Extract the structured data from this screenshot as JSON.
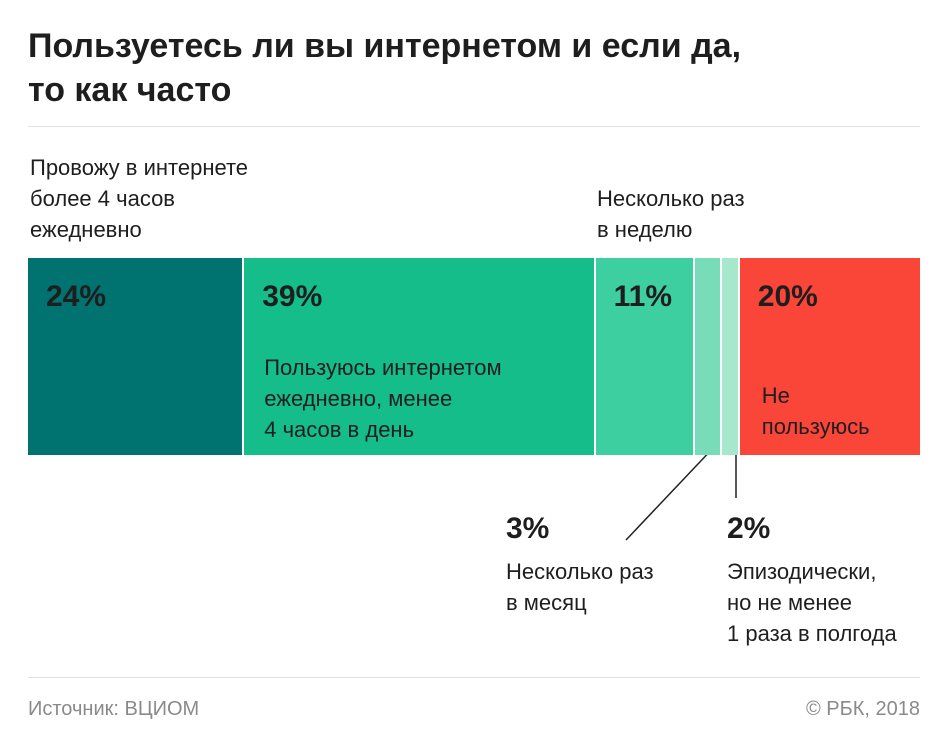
{
  "chart_data": {
    "type": "stacked-bar",
    "title": "Пользуетесь ли вы интернетом и если да,\nто как часто",
    "categories": [
      "Провожу в интернете\nболее 4 часов\nежедневно",
      "Пользуюсь интернетом\nежедневно, менее\n4 часов в день",
      "Несколько раз\nв неделю",
      "Несколько раз\nв месяц",
      "Эпизодически,\nно не менее\n1 раза в полгода",
      "Не\nпользуюсь"
    ],
    "values": [
      24,
      39,
      11,
      3,
      2,
      20
    ],
    "value_labels": [
      "24%",
      "39%",
      "11%",
      "3%",
      "2%",
      "20%"
    ],
    "colors": [
      "#00726f",
      "#14bd8a",
      "#3dcf9f",
      "#78dcb8",
      "#a6e8cc",
      "#fa4539"
    ],
    "source": "Источник: ВЦИОМ",
    "credit": "© РБК, 2018"
  }
}
